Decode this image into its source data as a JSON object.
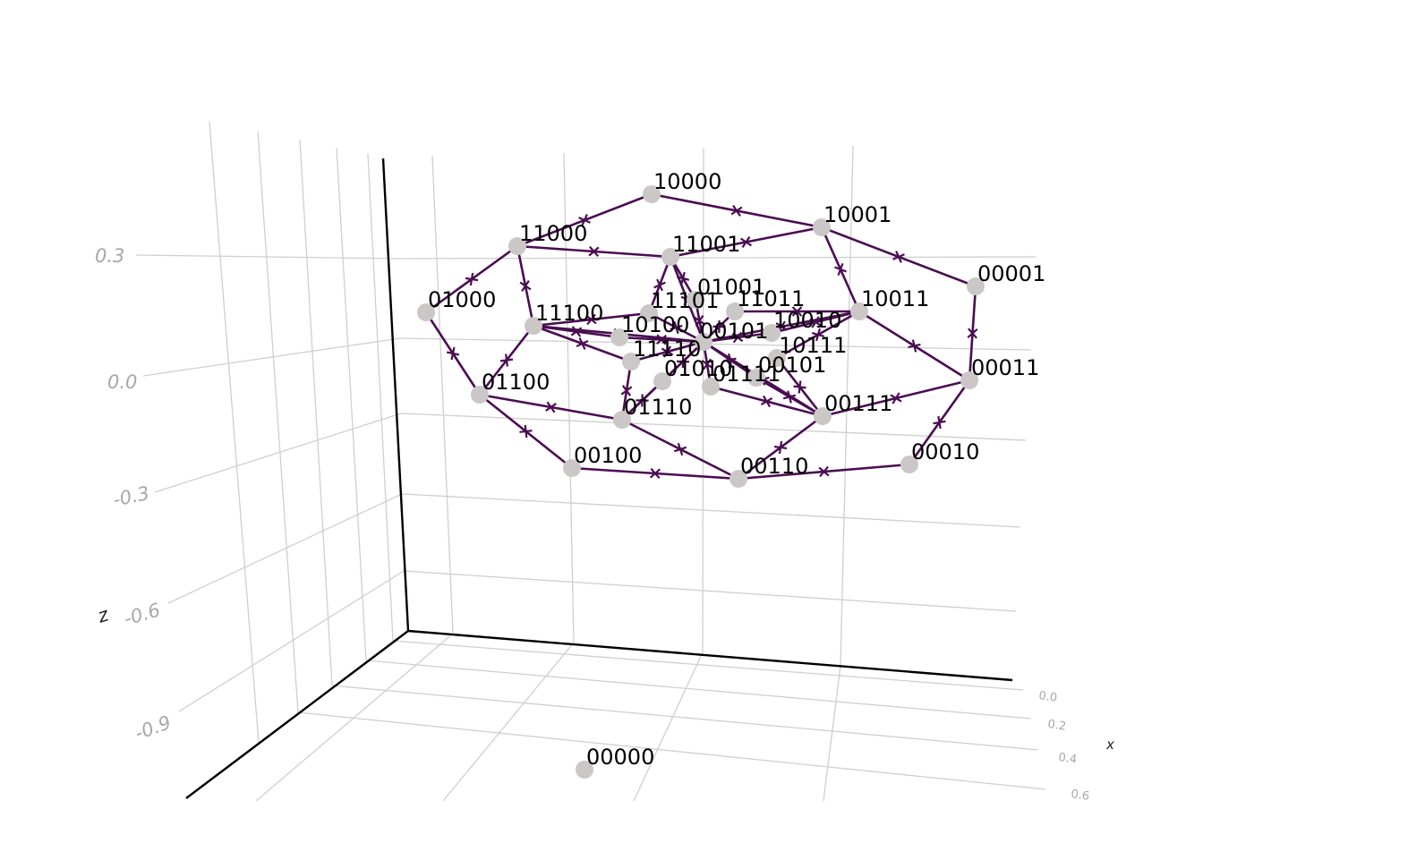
{
  "colors": {
    "edge": "#4a0d52",
    "node": "#cbc7c7",
    "grid": "#cfcfcf",
    "tick": "#a8a8a8",
    "axis": "#000000",
    "background": "#ffffff"
  },
  "axes": {
    "z_label": "z",
    "x_label": "x",
    "z_ticks": [
      "0.3",
      "0.0",
      "-0.3",
      "-0.6",
      "-0.9"
    ],
    "x_ticks": [
      "0.0",
      "0.2",
      "0.4",
      "0.6"
    ]
  },
  "nodes": [
    {
      "id": "10000",
      "label": "10000"
    },
    {
      "id": "10001",
      "label": "10001"
    },
    {
      "id": "11000",
      "label": "11000"
    },
    {
      "id": "11001",
      "label": "11001"
    },
    {
      "id": "00001",
      "label": "00001"
    },
    {
      "id": "01000",
      "label": "01000"
    },
    {
      "id": "11101",
      "label": "11101"
    },
    {
      "id": "01001",
      "label": "01001"
    },
    {
      "id": "11011",
      "label": "11011"
    },
    {
      "id": "10011",
      "label": "10011"
    },
    {
      "id": "11100",
      "label": "11100"
    },
    {
      "id": "10100",
      "label": "10100"
    },
    {
      "id": "10010",
      "label": "10010"
    },
    {
      "id": "00101x",
      "label": "00101"
    },
    {
      "id": "11110",
      "label": "11110"
    },
    {
      "id": "10111",
      "label": "10111"
    },
    {
      "id": "00011",
      "label": "00011"
    },
    {
      "id": "01010",
      "label": "01010"
    },
    {
      "id": "00101",
      "label": "00101"
    },
    {
      "id": "01111",
      "label": "01111"
    },
    {
      "id": "01100",
      "label": "01100"
    },
    {
      "id": "00111",
      "label": "00111"
    },
    {
      "id": "01110",
      "label": "01110"
    },
    {
      "id": "00010",
      "label": "00010"
    },
    {
      "id": "00100",
      "label": "00100"
    },
    {
      "id": "00110",
      "label": "00110"
    },
    {
      "id": "00000",
      "label": "00000"
    }
  ],
  "edges": [
    [
      "10000",
      "11000"
    ],
    [
      "10000",
      "10001"
    ],
    [
      "11000",
      "11001"
    ],
    [
      "11001",
      "10001"
    ],
    [
      "10001",
      "00001"
    ],
    [
      "10001",
      "10011"
    ],
    [
      "11000",
      "01000"
    ],
    [
      "11000",
      "11100"
    ],
    [
      "01000",
      "01100"
    ],
    [
      "11100",
      "01100"
    ],
    [
      "00001",
      "00011"
    ],
    [
      "10011",
      "00011"
    ],
    [
      "00011",
      "00010"
    ],
    [
      "00011",
      "00111"
    ],
    [
      "01100",
      "00100"
    ],
    [
      "01100",
      "01110"
    ],
    [
      "00100",
      "00110"
    ],
    [
      "00110",
      "00010"
    ],
    [
      "01110",
      "00110"
    ],
    [
      "00110",
      "00111"
    ],
    [
      "11001",
      "11101"
    ],
    [
      "11001",
      "01001"
    ],
    [
      "11001",
      "00101x"
    ],
    [
      "11100",
      "10100"
    ],
    [
      "11100",
      "00101x"
    ],
    [
      "11100",
      "11101"
    ],
    [
      "11100",
      "11110"
    ],
    [
      "10011",
      "11011"
    ],
    [
      "10011",
      "00101x"
    ],
    [
      "10011",
      "10111"
    ],
    [
      "10011",
      "10010"
    ],
    [
      "00111",
      "00101x"
    ],
    [
      "00111",
      "10111"
    ],
    [
      "00111",
      "01111"
    ],
    [
      "00111",
      "00101"
    ],
    [
      "01110",
      "11110"
    ],
    [
      "01110",
      "01010"
    ],
    [
      "01110",
      "00101x"
    ],
    [
      "00101x",
      "01001"
    ],
    [
      "00101x",
      "10100"
    ],
    [
      "00101x",
      "11110"
    ],
    [
      "00101x",
      "01010"
    ],
    [
      "00101x",
      "01111"
    ],
    [
      "00101x",
      "00101"
    ],
    [
      "00101x",
      "10010"
    ],
    [
      "00101x",
      "11011"
    ],
    [
      "00101x",
      "11101"
    ]
  ]
}
